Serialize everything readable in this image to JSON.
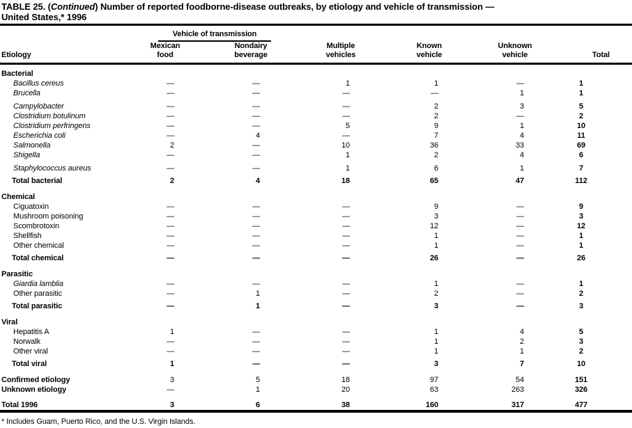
{
  "colors": {
    "text": "#000000",
    "background": "#ffffff",
    "rule": "#000000"
  },
  "title": {
    "line1_pre": "TABLE 25. (",
    "continued": "Continued",
    "line1_post": ") Number of reported foodborne-disease  outbreaks, by etiology and vehicle of transmission —",
    "line2": "United States,* 1996"
  },
  "header": {
    "etiology": "Etiology",
    "group": "Vehicle of transmission",
    "columns": [
      {
        "line1": "Mexican",
        "line2": "food"
      },
      {
        "line1": "Nondairy",
        "line2": "beverage"
      },
      {
        "line1": "Multiple",
        "line2": "vehicles"
      },
      {
        "line1": "Known",
        "line2": "vehicle"
      },
      {
        "line1": "Unknown",
        "line2": "vehicle"
      },
      {
        "line1": "",
        "line2": "Total"
      }
    ]
  },
  "sections": [
    {
      "name": "Bacterial",
      "rows": [
        {
          "label": "Bacillus cereus",
          "style": "italic",
          "values": [
            "—",
            "—",
            "1",
            "1",
            "—",
            "1"
          ]
        },
        {
          "label": "Brucella",
          "style": "italic",
          "values": [
            "—",
            "—",
            "—",
            "—",
            "1",
            "1"
          ]
        },
        {
          "label": "Campylobacter",
          "style": "italic",
          "gap": true,
          "values": [
            "—",
            "—",
            "—",
            "2",
            "3",
            "5"
          ]
        },
        {
          "label": "Clostridium botulinum",
          "style": "italic",
          "values": [
            "—",
            "—",
            "—",
            "2",
            "—",
            "2"
          ]
        },
        {
          "label": "Clostridium perfringens",
          "style": "italic",
          "values": [
            "—",
            "—",
            "5",
            "9",
            "1",
            "10"
          ]
        },
        {
          "label": "Escherichia coli",
          "style": "italic",
          "values": [
            "—",
            "4",
            "—",
            "7",
            "4",
            "11"
          ]
        },
        {
          "label": "Salmonella",
          "style": "italic",
          "values": [
            "2",
            "—",
            "10",
            "36",
            "33",
            "69"
          ]
        },
        {
          "label": "Shigella",
          "style": "italic",
          "values": [
            "—",
            "—",
            "1",
            "2",
            "4",
            "6"
          ]
        },
        {
          "label": "Staphylococcus aureus",
          "style": "italic",
          "gap": true,
          "values": [
            "—",
            "—",
            "1",
            "6",
            "1",
            "7"
          ]
        },
        {
          "label": "Total bacterial",
          "style": "total",
          "values": [
            "2",
            "4",
            "18",
            "65",
            "47",
            "112"
          ]
        }
      ]
    },
    {
      "name": "Chemical",
      "rows": [
        {
          "label": "Ciguatoxin",
          "style": "plain",
          "values": [
            "—",
            "—",
            "—",
            "9",
            "—",
            "9"
          ]
        },
        {
          "label": "Mushroom poisoning",
          "style": "plain",
          "values": [
            "—",
            "—",
            "—",
            "3",
            "—",
            "3"
          ]
        },
        {
          "label": "Scombrotoxin",
          "style": "plain",
          "values": [
            "—",
            "—",
            "—",
            "12",
            "—",
            "12"
          ]
        },
        {
          "label": "Shellfish",
          "style": "plain",
          "values": [
            "—",
            "—",
            "—",
            "1",
            "—",
            "1"
          ]
        },
        {
          "label": "Other chemical",
          "style": "plain",
          "values": [
            "—",
            "—",
            "—",
            "1",
            "—",
            "1"
          ]
        },
        {
          "label": "Total chemical",
          "style": "total",
          "values": [
            "—",
            "—",
            "—",
            "26",
            "—",
            "26"
          ]
        }
      ]
    },
    {
      "name": "Parasitic",
      "rows": [
        {
          "label": "Giardia lamblia",
          "style": "italic",
          "values": [
            "—",
            "—",
            "—",
            "1",
            "—",
            "1"
          ]
        },
        {
          "label": "Other parasitic",
          "style": "plain",
          "values": [
            "—",
            "1",
            "—",
            "2",
            "—",
            "2"
          ]
        },
        {
          "label": "Total parasitic",
          "style": "total",
          "values": [
            "—",
            "1",
            "—",
            "3",
            "—",
            "3"
          ]
        }
      ]
    },
    {
      "name": "Viral",
      "rows": [
        {
          "label": "Hepatitis A",
          "style": "plain",
          "values": [
            "1",
            "—",
            "—",
            "1",
            "4",
            "5"
          ]
        },
        {
          "label": "Norwalk",
          "style": "plain",
          "values": [
            "—",
            "—",
            "—",
            "1",
            "2",
            "3"
          ]
        },
        {
          "label": "Other viral",
          "style": "plain",
          "values": [
            "—",
            "—",
            "—",
            "1",
            "1",
            "2"
          ]
        },
        {
          "label": "Total viral",
          "style": "total",
          "values": [
            "1",
            "—",
            "—",
            "3",
            "7",
            "10"
          ]
        }
      ]
    }
  ],
  "footer": {
    "rows": [
      {
        "label": "Confirmed etiology",
        "style": "footer",
        "values": [
          "3",
          "5",
          "18",
          "97",
          "54",
          "151"
        ]
      },
      {
        "label": "Unknown etiology",
        "style": "footer",
        "values": [
          "—",
          "1",
          "20",
          "63",
          "263",
          "326"
        ]
      },
      {
        "label": "Total 1996",
        "style": "grand-total",
        "values": [
          "3",
          "6",
          "38",
          "160",
          "317",
          "477"
        ]
      }
    ]
  },
  "footnote": "* Includes Guam, Puerto Rico, and the U.S. Virgin Islands."
}
